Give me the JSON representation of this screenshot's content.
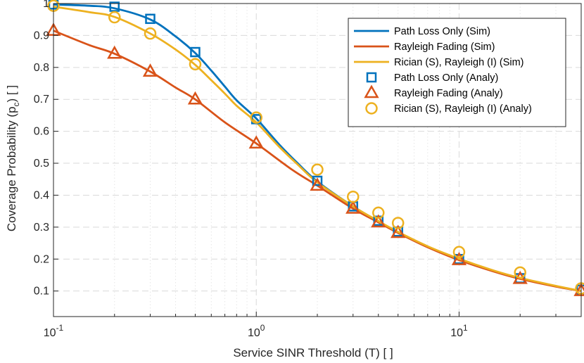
{
  "chart_data": {
    "type": "line",
    "xscale": "log",
    "xlabel": "Service SINR Threshold (T) [ ]",
    "ylabel_main": "Coverage Probability (p",
    "ylabel_sub": "c",
    "ylabel_tail": ") [ ]",
    "xlim": [
      0.1,
      40
    ],
    "ylim": [
      0.02,
      1.0
    ],
    "x_ticks": [
      {
        "base": "10",
        "exp": "-1"
      },
      {
        "base": "10",
        "exp": "0"
      },
      {
        "base": "10",
        "exp": "1"
      }
    ],
    "y_ticks": [
      "0.1",
      "0.2",
      "0.3",
      "0.4",
      "0.5",
      "0.6",
      "0.7",
      "0.8",
      "0.9",
      "1"
    ],
    "grid": true,
    "legend_position": "top-right",
    "series": [
      {
        "name": "Path Loss Only (Sim)",
        "kind": "line",
        "color": "#0072BD",
        "x": [
          0.1,
          0.15,
          0.2,
          0.3,
          0.4,
          0.5,
          0.6,
          0.7,
          0.8,
          1,
          1.3,
          1.6,
          2,
          3,
          4,
          5,
          7,
          10,
          15,
          20,
          30,
          40
        ],
        "values": [
          0.997,
          0.993,
          0.985,
          0.95,
          0.897,
          0.845,
          0.79,
          0.74,
          0.697,
          0.64,
          0.558,
          0.5,
          0.443,
          0.365,
          0.318,
          0.283,
          0.238,
          0.2,
          0.162,
          0.14,
          0.115,
          0.1
        ]
      },
      {
        "name": "Rayleigh Fading (Sim)",
        "kind": "line",
        "color": "#D95319",
        "x": [
          0.1,
          0.15,
          0.2,
          0.3,
          0.4,
          0.5,
          0.7,
          1,
          1.5,
          2,
          3,
          4,
          5,
          7,
          10,
          15,
          20,
          30,
          40
        ],
        "values": [
          0.915,
          0.87,
          0.843,
          0.787,
          0.737,
          0.7,
          0.628,
          0.562,
          0.48,
          0.43,
          0.358,
          0.315,
          0.282,
          0.237,
          0.197,
          0.16,
          0.138,
          0.114,
          0.1
        ]
      },
      {
        "name": "Rician (S), Rayleigh (I) (Sim)",
        "kind": "line",
        "color": "#EDB120",
        "x": [
          0.1,
          0.15,
          0.2,
          0.3,
          0.4,
          0.5,
          0.6,
          0.7,
          0.8,
          1,
          1.3,
          1.6,
          2,
          3,
          4,
          5,
          7,
          10,
          15,
          20,
          30,
          40
        ],
        "values": [
          0.99,
          0.973,
          0.958,
          0.906,
          0.856,
          0.808,
          0.76,
          0.718,
          0.68,
          0.628,
          0.551,
          0.496,
          0.44,
          0.365,
          0.319,
          0.285,
          0.24,
          0.201,
          0.163,
          0.141,
          0.116,
          0.1
        ]
      },
      {
        "name": "Path Loss Only (Analy)",
        "kind": "marker",
        "marker": "square",
        "color": "#0072BD",
        "x": [
          0.1,
          0.2,
          0.3,
          0.5,
          1,
          2,
          3,
          4,
          5,
          10,
          20,
          40
        ],
        "values": [
          0.997,
          0.99,
          0.952,
          0.848,
          0.638,
          0.445,
          0.365,
          0.32,
          0.286,
          0.2,
          0.14,
          0.104
        ]
      },
      {
        "name": "Rayleigh Fading (Analy)",
        "kind": "marker",
        "marker": "triangle",
        "color": "#D95319",
        "x": [
          0.1,
          0.2,
          0.3,
          0.5,
          1,
          2,
          3,
          4,
          5,
          10,
          20,
          40
        ],
        "values": [
          0.915,
          0.843,
          0.787,
          0.7,
          0.562,
          0.43,
          0.358,
          0.315,
          0.282,
          0.197,
          0.138,
          0.1
        ]
      },
      {
        "name": "Rician (S), Rayleigh (I) (Analy)",
        "kind": "marker",
        "marker": "circle",
        "color": "#EDB120",
        "x": [
          0.1,
          0.2,
          0.3,
          0.5,
          1,
          2,
          3,
          4,
          5,
          10,
          20,
          40
        ],
        "values": [
          0.993,
          0.957,
          0.906,
          0.81,
          0.643,
          0.48,
          0.395,
          0.345,
          0.313,
          0.222,
          0.158,
          0.108
        ]
      }
    ]
  }
}
